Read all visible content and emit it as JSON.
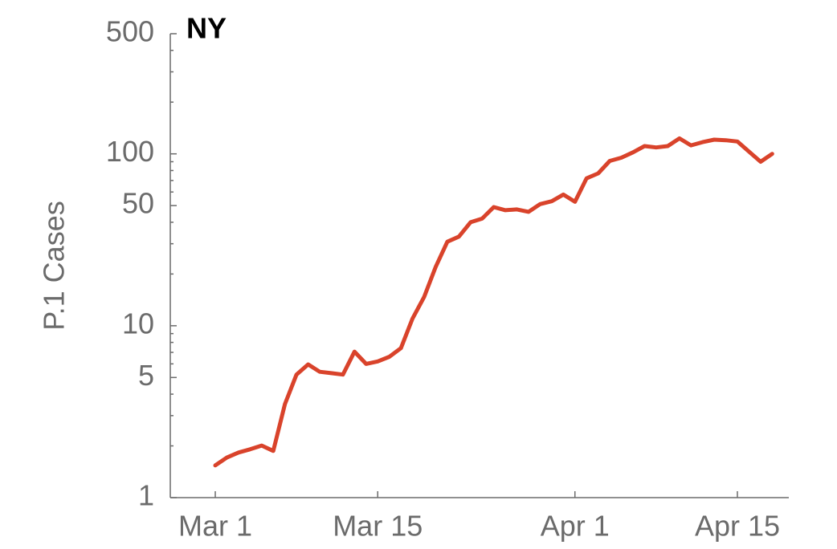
{
  "chart_data": {
    "type": "line",
    "title": "NY",
    "ylabel": "P.1 Cases",
    "categories": [
      "Mar 1",
      null,
      null,
      null,
      null,
      null,
      null,
      null,
      null,
      null,
      null,
      null,
      null,
      null,
      "Mar 15",
      null,
      null,
      null,
      null,
      null,
      null,
      null,
      null,
      null,
      null,
      null,
      null,
      null,
      null,
      null,
      null,
      "Apr 1",
      null,
      null,
      null,
      null,
      null,
      null,
      null,
      null,
      null,
      null,
      null,
      null,
      null,
      "Apr 15",
      null,
      null,
      null
    ],
    "series": [
      {
        "name": "NY",
        "color": "#d9432b",
        "values": [
          1.54,
          1.71,
          1.83,
          1.91,
          2.01,
          1.87,
          3.5,
          5.2,
          5.96,
          5.4,
          5.3,
          5.2,
          7.07,
          6.0,
          6.2,
          6.6,
          7.4,
          11,
          14.7,
          22,
          30.8,
          33,
          40,
          42,
          49,
          47,
          47.5,
          46,
          51,
          53,
          58,
          52.6,
          72,
          77,
          91,
          95,
          102,
          111,
          109,
          111,
          123,
          112,
          117,
          121,
          120,
          118,
          103,
          90,
          100
        ]
      }
    ],
    "yscale": "log",
    "ylim": [
      1,
      500
    ],
    "yticks": [
      1,
      5,
      10,
      50,
      100,
      500
    ],
    "yminorticks": [
      2,
      3,
      4,
      6,
      7,
      8,
      9,
      20,
      30,
      40,
      60,
      70,
      80,
      90,
      200,
      300,
      400
    ],
    "grid": false
  }
}
